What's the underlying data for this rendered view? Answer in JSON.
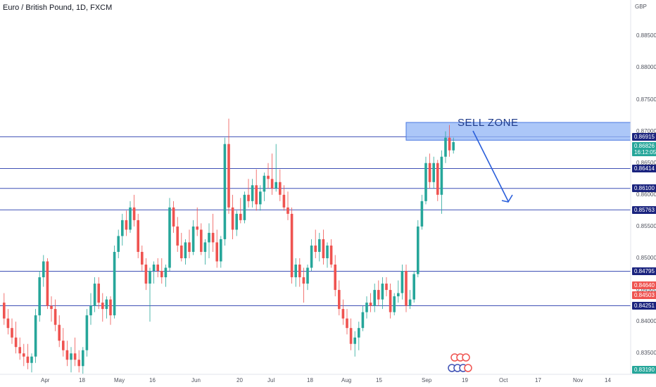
{
  "header": {
    "title": "Euro / British Pound, 1D, FXCM",
    "currency": "GBP"
  },
  "colors": {
    "up": "#26a69a",
    "down": "#ef5350",
    "level_line": "#3f51b5",
    "zone_fill": "#90b4f5",
    "zone_border": "#4a78e0",
    "arrow": "#2a5fdb",
    "current_tag": "#26a69a",
    "level_tag": "#1a237e",
    "high_tag": "#ef5350"
  },
  "chart_data": {
    "type": "candlestick",
    "ylim": [
      0.8317,
      0.8907
    ],
    "y_ticks": [
      "0.88500",
      "0.88000",
      "0.87500",
      "0.87000",
      "0.86500",
      "0.86000",
      "0.85500",
      "0.85000",
      "0.84500",
      "0.84000",
      "0.83500"
    ],
    "x_ticks": [
      "Apr",
      "18",
      "May",
      "16",
      "Jun",
      "20",
      "Jul",
      "18",
      "Aug",
      "15",
      "Sep",
      "19",
      "Oct",
      "17",
      "Nov",
      "14"
    ],
    "levels": [
      0.86915,
      0.86414,
      0.861,
      0.85763,
      0.84795,
      0.84251
    ],
    "level_labels": [
      "0.86915",
      "0.86414",
      "0.86100",
      "0.85763",
      "0.84795",
      "0.84251"
    ],
    "current_price": "0.86826",
    "countdown": "16:12:05",
    "side_tags": [
      "0.84640",
      "0.84503"
    ],
    "low_tag": "0.83190",
    "annotations": {
      "sell_zone": {
        "label": "SELL ZONE",
        "low": 0.8686,
        "high": 0.8714
      }
    },
    "candles": [
      [
        0.843,
        0.8445,
        0.8395,
        0.8405
      ],
      [
        0.8405,
        0.842,
        0.838,
        0.839
      ],
      [
        0.839,
        0.8405,
        0.8365,
        0.8375
      ],
      [
        0.8375,
        0.84,
        0.835,
        0.836
      ],
      [
        0.836,
        0.8375,
        0.834,
        0.835
      ],
      [
        0.835,
        0.8365,
        0.833,
        0.8345
      ],
      [
        0.8345,
        0.8365,
        0.8325,
        0.8335
      ],
      [
        0.8335,
        0.835,
        0.832,
        0.8345
      ],
      [
        0.8345,
        0.842,
        0.8335,
        0.841
      ],
      [
        0.841,
        0.848,
        0.84,
        0.847
      ],
      [
        0.847,
        0.8505,
        0.8455,
        0.8495
      ],
      [
        0.8495,
        0.85,
        0.842,
        0.8425
      ],
      [
        0.8425,
        0.844,
        0.84,
        0.842
      ],
      [
        0.842,
        0.8435,
        0.8385,
        0.8395
      ],
      [
        0.8395,
        0.841,
        0.836,
        0.837
      ],
      [
        0.837,
        0.839,
        0.8345,
        0.8355
      ],
      [
        0.8355,
        0.837,
        0.833,
        0.834
      ],
      [
        0.834,
        0.836,
        0.832,
        0.835
      ],
      [
        0.835,
        0.8375,
        0.833,
        0.834
      ],
      [
        0.834,
        0.8355,
        0.832,
        0.833
      ],
      [
        0.833,
        0.836,
        0.8318,
        0.8355
      ],
      [
        0.8355,
        0.842,
        0.8345,
        0.841
      ],
      [
        0.841,
        0.8445,
        0.8395,
        0.8425
      ],
      [
        0.8425,
        0.847,
        0.8415,
        0.846
      ],
      [
        0.846,
        0.847,
        0.842,
        0.843
      ],
      [
        0.843,
        0.8445,
        0.84,
        0.842
      ],
      [
        0.842,
        0.844,
        0.8405,
        0.8435
      ],
      [
        0.8435,
        0.844,
        0.8395,
        0.841
      ],
      [
        0.841,
        0.852,
        0.8405,
        0.851
      ],
      [
        0.851,
        0.8545,
        0.85,
        0.8535
      ],
      [
        0.8535,
        0.857,
        0.852,
        0.856
      ],
      [
        0.856,
        0.8575,
        0.8535,
        0.8545
      ],
      [
        0.8545,
        0.859,
        0.854,
        0.858
      ],
      [
        0.858,
        0.86,
        0.855,
        0.856
      ],
      [
        0.856,
        0.857,
        0.85,
        0.851
      ],
      [
        0.851,
        0.852,
        0.848,
        0.849
      ],
      [
        0.849,
        0.85,
        0.845,
        0.846
      ],
      [
        0.846,
        0.8485,
        0.84,
        0.848
      ],
      [
        0.848,
        0.8495,
        0.846,
        0.849
      ],
      [
        0.849,
        0.85,
        0.847,
        0.848
      ],
      [
        0.848,
        0.85,
        0.846,
        0.847
      ],
      [
        0.847,
        0.849,
        0.8455,
        0.8485
      ],
      [
        0.8485,
        0.8595,
        0.848,
        0.858
      ],
      [
        0.858,
        0.859,
        0.854,
        0.855
      ],
      [
        0.855,
        0.8565,
        0.851,
        0.852
      ],
      [
        0.852,
        0.854,
        0.8495,
        0.85
      ],
      [
        0.85,
        0.853,
        0.849,
        0.8525
      ],
      [
        0.8525,
        0.8545,
        0.85,
        0.851
      ],
      [
        0.851,
        0.856,
        0.8505,
        0.855
      ],
      [
        0.855,
        0.858,
        0.8535,
        0.8545
      ],
      [
        0.8545,
        0.8555,
        0.8505,
        0.851
      ],
      [
        0.851,
        0.853,
        0.849,
        0.8525
      ],
      [
        0.8525,
        0.8555,
        0.85,
        0.854
      ],
      [
        0.854,
        0.857,
        0.851,
        0.8525
      ],
      [
        0.8525,
        0.8545,
        0.8485,
        0.8495
      ],
      [
        0.8495,
        0.8535,
        0.8485,
        0.853
      ],
      [
        0.853,
        0.869,
        0.852,
        0.868
      ],
      [
        0.868,
        0.872,
        0.857,
        0.858
      ],
      [
        0.858,
        0.86,
        0.853,
        0.8545
      ],
      [
        0.8545,
        0.8575,
        0.8535,
        0.857
      ],
      [
        0.857,
        0.8595,
        0.8555,
        0.856
      ],
      [
        0.856,
        0.8605,
        0.8555,
        0.86
      ],
      [
        0.86,
        0.8625,
        0.858,
        0.859
      ],
      [
        0.859,
        0.8625,
        0.858,
        0.8615
      ],
      [
        0.8615,
        0.864,
        0.8575,
        0.8585
      ],
      [
        0.8585,
        0.8615,
        0.8575,
        0.8605
      ],
      [
        0.8605,
        0.8635,
        0.859,
        0.863
      ],
      [
        0.863,
        0.865,
        0.861,
        0.8625
      ],
      [
        0.8625,
        0.8665,
        0.86,
        0.861
      ],
      [
        0.861,
        0.868,
        0.8605,
        0.862
      ],
      [
        0.862,
        0.864,
        0.859,
        0.86
      ],
      [
        0.86,
        0.8615,
        0.8575,
        0.858
      ],
      [
        0.858,
        0.8605,
        0.856,
        0.857
      ],
      [
        0.857,
        0.858,
        0.846,
        0.847
      ],
      [
        0.847,
        0.85,
        0.8455,
        0.849
      ],
      [
        0.849,
        0.85,
        0.8455,
        0.847
      ],
      [
        0.847,
        0.8485,
        0.843,
        0.846
      ],
      [
        0.846,
        0.849,
        0.845,
        0.8485
      ],
      [
        0.8485,
        0.853,
        0.848,
        0.852
      ],
      [
        0.852,
        0.8545,
        0.85,
        0.851
      ],
      [
        0.851,
        0.854,
        0.8495,
        0.853
      ],
      [
        0.853,
        0.8545,
        0.849,
        0.85
      ],
      [
        0.85,
        0.8525,
        0.8485,
        0.852
      ],
      [
        0.852,
        0.853,
        0.8485,
        0.849
      ],
      [
        0.849,
        0.8505,
        0.844,
        0.845
      ],
      [
        0.845,
        0.8465,
        0.841,
        0.842
      ],
      [
        0.842,
        0.8435,
        0.8395,
        0.8405
      ],
      [
        0.8405,
        0.842,
        0.838,
        0.839
      ],
      [
        0.839,
        0.8405,
        0.8355,
        0.8365
      ],
      [
        0.8365,
        0.8385,
        0.8345,
        0.8375
      ],
      [
        0.8375,
        0.84,
        0.8355,
        0.839
      ],
      [
        0.839,
        0.8425,
        0.8385,
        0.8415
      ],
      [
        0.8415,
        0.844,
        0.8405,
        0.843
      ],
      [
        0.843,
        0.8445,
        0.8415,
        0.8425
      ],
      [
        0.8425,
        0.846,
        0.8415,
        0.845
      ],
      [
        0.845,
        0.8465,
        0.8425,
        0.8435
      ],
      [
        0.8435,
        0.847,
        0.842,
        0.846
      ],
      [
        0.846,
        0.847,
        0.844,
        0.845
      ],
      [
        0.845,
        0.846,
        0.8405,
        0.8415
      ],
      [
        0.8415,
        0.8445,
        0.841,
        0.844
      ],
      [
        0.844,
        0.8465,
        0.843,
        0.8445
      ],
      [
        0.8445,
        0.849,
        0.8435,
        0.848
      ],
      [
        0.848,
        0.849,
        0.8415,
        0.8425
      ],
      [
        0.8425,
        0.845,
        0.842,
        0.8435
      ],
      [
        0.8435,
        0.848,
        0.843,
        0.8475
      ],
      [
        0.8475,
        0.856,
        0.847,
        0.855
      ],
      [
        0.855,
        0.86,
        0.8545,
        0.859
      ],
      [
        0.859,
        0.866,
        0.8585,
        0.865
      ],
      [
        0.865,
        0.8665,
        0.861,
        0.862
      ],
      [
        0.862,
        0.866,
        0.861,
        0.865
      ],
      [
        0.865,
        0.8655,
        0.859,
        0.86
      ],
      [
        0.86,
        0.867,
        0.857,
        0.866
      ],
      [
        0.866,
        0.87,
        0.865,
        0.869
      ],
      [
        0.869,
        0.871,
        0.866,
        0.867
      ],
      [
        0.867,
        0.869,
        0.8665,
        0.8683
      ]
    ]
  }
}
